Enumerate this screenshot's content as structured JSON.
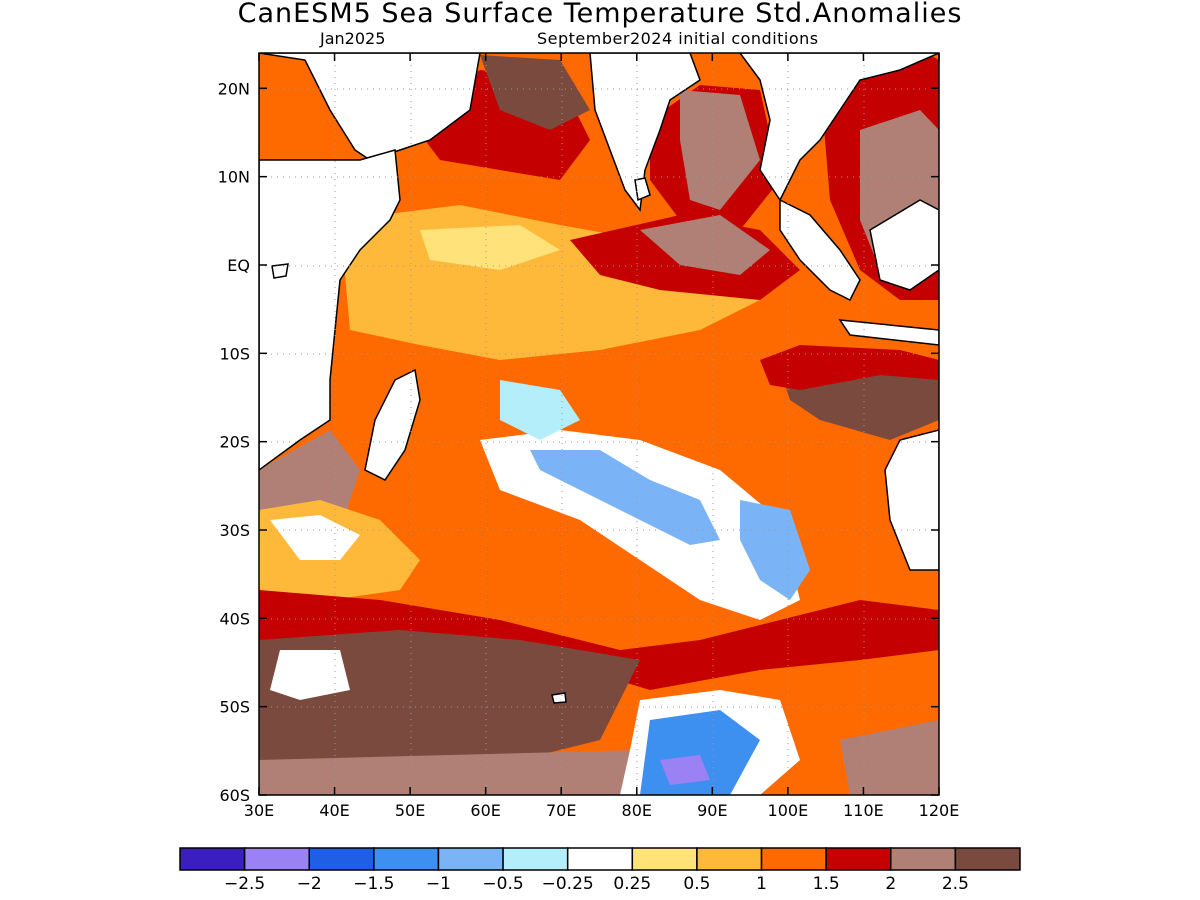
{
  "title": "CanESM5 Sea Surface Temperature Std.Anomalies",
  "subtitle_left": "Jan2025",
  "subtitle_right": "September2024 initial conditions",
  "map": {
    "lon_range": [
      30,
      120
    ],
    "lat_range": [
      -60,
      24
    ],
    "lon_ticks": [
      "30E",
      "40E",
      "50E",
      "60E",
      "70E",
      "80E",
      "90E",
      "100E",
      "110E",
      "120E"
    ],
    "lat_ticks": [
      "20N",
      "10N",
      "EQ",
      "10S",
      "20S",
      "30S",
      "40S",
      "50S",
      "60S"
    ],
    "land_color": "#ffffff",
    "grid": "dotted"
  },
  "colorbar": {
    "colors": [
      "#3a1fbe",
      "#9a82f5",
      "#1f5fe6",
      "#3d8ff0",
      "#7ab4f7",
      "#b3eefa",
      "#ffffff",
      "#ffe27a",
      "#ffb93a",
      "#ff6a00",
      "#c40000",
      "#b08077",
      "#7a4a3f"
    ],
    "labels": [
      "−2.5",
      "−2",
      "−1.5",
      "−1",
      "−0.5",
      "−0.25",
      "0.25",
      "0.5",
      "1",
      "1.5",
      "2",
      "2.5"
    ]
  }
}
